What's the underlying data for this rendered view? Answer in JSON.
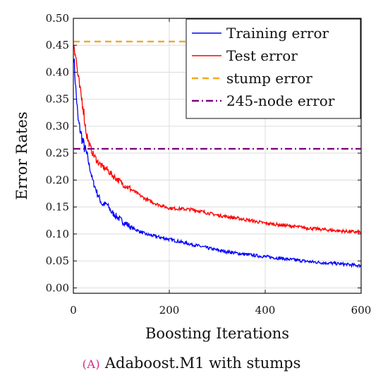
{
  "chart_data": {
    "type": "line",
    "xlabel": "Boosting Iterations",
    "ylabel": "Error Rates",
    "xlim": [
      0,
      600
    ],
    "ylim": [
      -0.01,
      0.5
    ],
    "xticks": [
      "0",
      "200",
      "400",
      "600"
    ],
    "yticks": [
      "0.00",
      "0.05",
      "0.10",
      "0.15",
      "0.20",
      "0.25",
      "0.30",
      "0.35",
      "0.40",
      "0.45",
      "0.50"
    ],
    "grid": true,
    "legend_position": "top-right",
    "series": [
      {
        "name": "Training error",
        "color": "#0000ff",
        "style": "solid",
        "x": [
          1,
          5,
          10,
          15,
          20,
          25,
          30,
          40,
          50,
          60,
          70,
          80,
          100,
          125,
          150,
          175,
          200,
          250,
          300,
          350,
          400,
          450,
          500,
          550,
          600
        ],
        "y": [
          0.43,
          0.37,
          0.31,
          0.29,
          0.27,
          0.255,
          0.24,
          0.2,
          0.175,
          0.155,
          0.155,
          0.14,
          0.125,
          0.11,
          0.1,
          0.095,
          0.09,
          0.08,
          0.07,
          0.063,
          0.058,
          0.053,
          0.048,
          0.045,
          0.041
        ]
      },
      {
        "name": "Test error",
        "color": "#ff0000",
        "style": "solid",
        "x": [
          1,
          5,
          10,
          15,
          20,
          25,
          30,
          40,
          50,
          60,
          70,
          80,
          100,
          125,
          150,
          175,
          200,
          250,
          300,
          350,
          400,
          450,
          500,
          550,
          600
        ],
        "y": [
          0.455,
          0.43,
          0.39,
          0.36,
          0.34,
          0.3,
          0.275,
          0.25,
          0.235,
          0.225,
          0.22,
          0.21,
          0.195,
          0.18,
          0.165,
          0.155,
          0.148,
          0.145,
          0.135,
          0.128,
          0.12,
          0.115,
          0.11,
          0.106,
          0.103
        ]
      },
      {
        "name": "stump error",
        "color": "#f5a623",
        "style": "dashed",
        "x": [
          0,
          600
        ],
        "y": [
          0.457,
          0.457
        ]
      },
      {
        "name": "245-node error",
        "color": "#800080",
        "style": "dashdot",
        "x": [
          0,
          600
        ],
        "y": [
          0.258,
          0.258
        ]
      }
    ]
  },
  "caption": {
    "tag": "(A)",
    "text": "Adaboost.M1 with stumps"
  }
}
